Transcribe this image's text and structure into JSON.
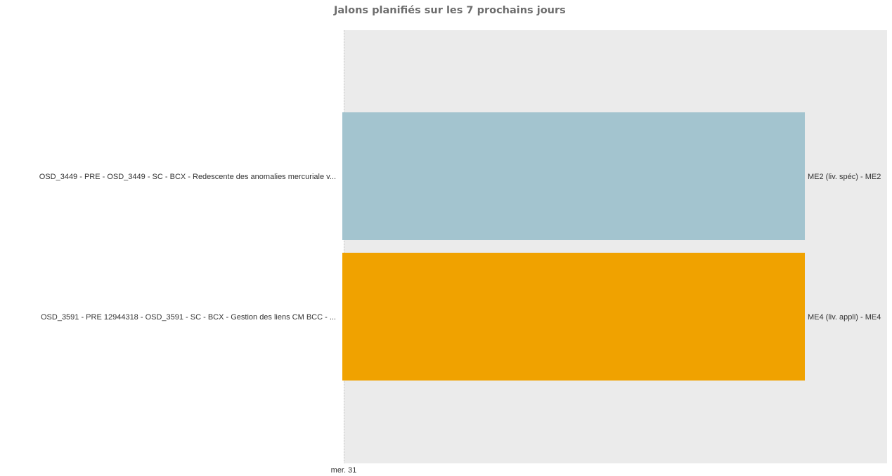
{
  "chart_data": {
    "type": "bar",
    "orientation": "horizontal",
    "title": "Jalons planifiés sur les 7 prochains jours",
    "xlabel": "",
    "ylabel": "",
    "categories": [
      "OSD_3449 - PRE - OSD_3449 - SC - BCX - Redescente des anomalies mercuriale v...",
      "OSD_3591 - PRE 12944318 - OSD_3591 - SC - BCX - Gestion des liens CM BCC - ..."
    ],
    "x_ticks": [
      "mer. 31"
    ],
    "bars": [
      {
        "start_day": 0,
        "end_day": 6,
        "color": "#a3c4cf",
        "label": "ME2 (liv. spéc) - ME2"
      },
      {
        "start_day": 0,
        "end_day": 6,
        "color": "#f0a200",
        "label": "ME4 (liv. appli) - ME4"
      }
    ],
    "x_range_days": [
      0,
      7
    ],
    "plot_background": "#ebebeb",
    "grid": false,
    "legend": "none"
  }
}
